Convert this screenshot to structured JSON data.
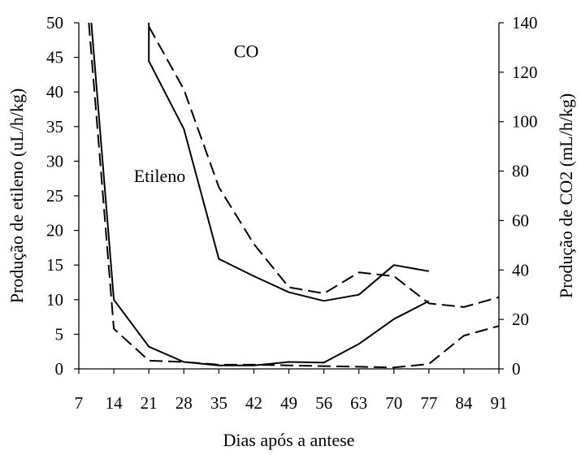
{
  "chart_data": {
    "type": "line",
    "title": "",
    "xlabel": "Dias após a antese",
    "ylabel_left": "Produção de etileno (uL/h/kg)",
    "ylabel_right": "Produção de CO2 (mL/h/kg)",
    "xlim": [
      7,
      91
    ],
    "ylim_left": [
      0,
      50
    ],
    "ylim_right": [
      0,
      140
    ],
    "x_ticks": [
      "7",
      "14",
      "21",
      "28",
      "35",
      "42",
      "49",
      "56",
      "63",
      "70",
      "77",
      "84",
      "91"
    ],
    "y_ticks_left": [
      "0",
      "5",
      "10",
      "15",
      "20",
      "25",
      "30",
      "35",
      "40",
      "45",
      "50"
    ],
    "y_ticks_right": [
      "0",
      "20",
      "40",
      "60",
      "80",
      "100",
      "120",
      "140"
    ],
    "grid": false,
    "legend": "none",
    "annotations": [
      {
        "text": "CO",
        "x": 38,
        "y": 45
      },
      {
        "text": "Etileno",
        "x": 18,
        "y": 27
      }
    ],
    "series": [
      {
        "axis": "left",
        "style": "solid",
        "x": [
          9.5,
          14,
          21,
          28,
          35,
          42,
          49,
          56,
          63,
          70,
          77
        ],
        "y": [
          50,
          10,
          3.2,
          1.0,
          0.5,
          0.5,
          1.0,
          0.9,
          3.6,
          7.2,
          9.8
        ]
      },
      {
        "axis": "left",
        "style": "dashed",
        "x": [
          9,
          14,
          21,
          28,
          35,
          42,
          49,
          56,
          63,
          70,
          77,
          84,
          91
        ],
        "y": [
          50,
          5.8,
          1.2,
          1.0,
          0.6,
          0.6,
          0.5,
          0.4,
          0.3,
          0.2,
          0.7,
          4.8,
          6.2
        ]
      },
      {
        "axis": "right",
        "style": "solid",
        "x": [
          21,
          21,
          28,
          35,
          42,
          49,
          56,
          63,
          70,
          77
        ],
        "y": [
          140,
          124.5,
          97.0,
          44.5,
          37.5,
          31.0,
          27.5,
          30.0,
          42.0,
          39.5
        ]
      },
      {
        "axis": "right",
        "style": "dashed",
        "x": [
          21,
          28,
          35,
          42,
          49,
          56,
          63,
          70,
          77,
          84,
          91
        ],
        "y": [
          138.5,
          113.0,
          73.5,
          50.5,
          33.0,
          30.5,
          39.0,
          37.5,
          26.5,
          25.0,
          29.0
        ]
      }
    ]
  }
}
